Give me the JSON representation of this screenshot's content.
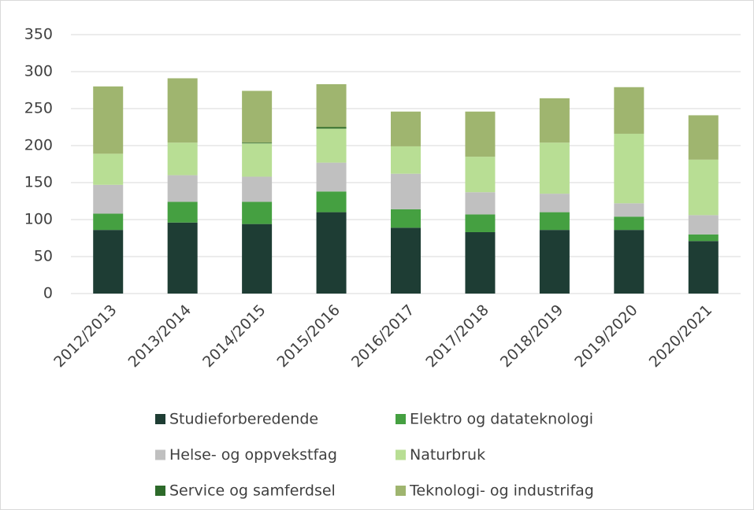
{
  "chart_data": {
    "type": "stacked_bar",
    "categories": [
      "2012/2013",
      "2013/2014",
      "2014/2015",
      "2015/2016",
      "2016/2017",
      "2017/2018",
      "2018/2019",
      "2019/2020",
      "2020/2021"
    ],
    "series": [
      {
        "name": "Studieforberedende",
        "color": "#1e3d34",
        "values": [
          86,
          96,
          94,
          110,
          89,
          83,
          86,
          86,
          71
        ]
      },
      {
        "name": "Elektro og datateknologi",
        "color": "#45a041",
        "values": [
          22,
          28,
          30,
          28,
          25,
          24,
          24,
          18,
          9
        ]
      },
      {
        "name": "Helse- og oppvekstfag",
        "color": "#c0c0c0",
        "values": [
          39,
          36,
          34,
          39,
          48,
          30,
          25,
          18,
          26
        ]
      },
      {
        "name": "Naturbruk",
        "color": "#b8de94",
        "values": [
          42,
          44,
          45,
          46,
          37,
          48,
          69,
          94,
          75
        ]
      },
      {
        "name": "Service og samferdsel",
        "color": "#2d6a2a",
        "values": [
          0,
          0,
          1,
          2,
          0,
          0,
          0,
          0,
          0
        ]
      },
      {
        "name": "Teknologi- og industrifag",
        "color": "#9fb56f",
        "values": [
          91,
          87,
          70,
          58,
          47,
          61,
          60,
          63,
          60
        ]
      }
    ],
    "ylim": [
      0,
      350
    ],
    "yticks": [
      0,
      50,
      100,
      150,
      200,
      250,
      300,
      350
    ],
    "grid": true,
    "legend": "bottom"
  }
}
